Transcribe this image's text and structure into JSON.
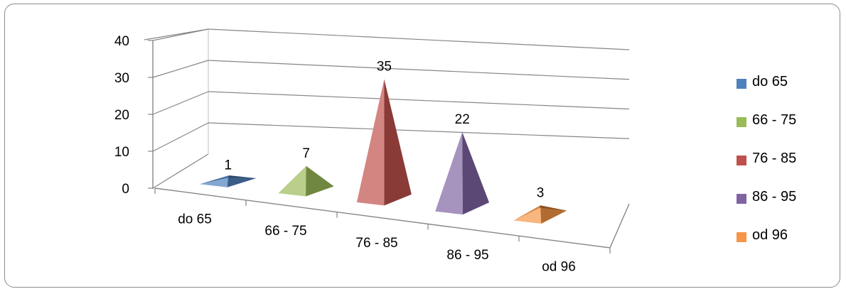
{
  "chart_data": {
    "type": "bar",
    "style": "3d-pyramid",
    "categories": [
      "do 65",
      "66 - 75",
      "76 - 85",
      "86 - 95",
      "od 96"
    ],
    "values": [
      1,
      7,
      35,
      22,
      3
    ],
    "ylim": [
      0,
      40
    ],
    "yticks": [
      0,
      10,
      20,
      30,
      40
    ],
    "grid": true,
    "legend_position": "right",
    "legend": [
      "do 65",
      "66 - 75",
      "76 - 85",
      "86 - 95",
      "od 96"
    ],
    "colors": [
      "#4F81BD",
      "#9BBB59",
      "#C0504D",
      "#8064A2",
      "#F79646"
    ]
  }
}
